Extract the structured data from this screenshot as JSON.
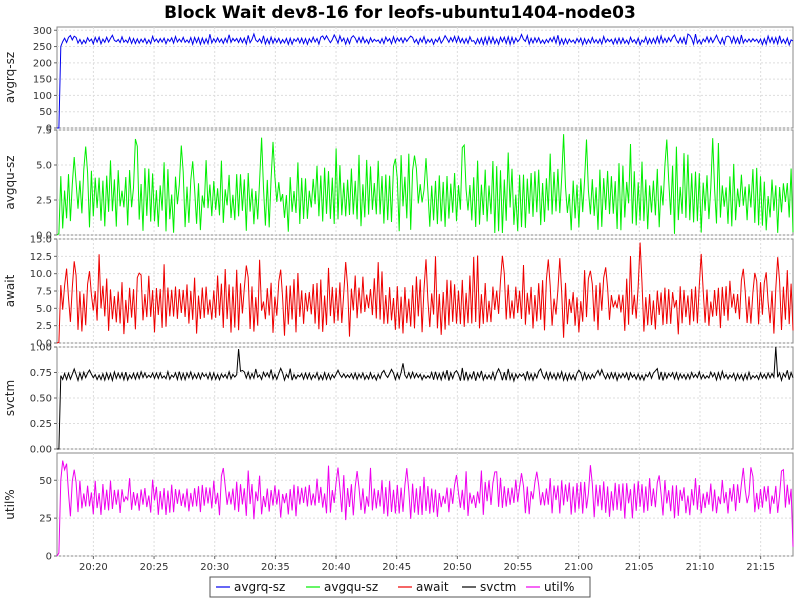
{
  "chart_data": {
    "type": "line",
    "title": "Block Wait dev8-16 for leofs-ubuntu1404-node03",
    "x_axis": {
      "ticks": [
        "20:20",
        "20:25",
        "20:30",
        "20:35",
        "20:40",
        "20:45",
        "20:50",
        "20:55",
        "21:00",
        "21:05",
        "21:10",
        "21:15"
      ],
      "range": [
        "20:17:00",
        "21:17:40"
      ]
    },
    "grid": true,
    "legend_position": "bottom",
    "legend": [
      "avgrq-sz",
      "avgqu-sz",
      "await",
      "svctm",
      "util%"
    ],
    "panels": [
      {
        "name": "avgrq-sz",
        "ylabel": "avgrq-sz",
        "color": "#0000ee",
        "ylim": [
          0,
          310
        ],
        "yticks": [
          "0",
          "50",
          "100",
          "150",
          "200",
          "250",
          "300"
        ],
        "baseline": 268,
        "amplitude": 9,
        "spikes": [
          [
            1,
            0
          ],
          [
            2,
            250
          ]
        ],
        "values_summary": "rises from 0 to ~255 within the first minute, then fluctuates between ~258 and ~298"
      },
      {
        "name": "avgqu-sz",
        "ylabel": "avgqu-sz",
        "color": "#00ee00",
        "ylim": [
          0,
          7.5
        ],
        "yticks": [
          "0.0",
          "2.5",
          "5.0",
          "7.5"
        ],
        "baseline": 2.6,
        "amplitude": 1.9,
        "spikes": [
          [
            1,
            0.1
          ],
          [
            2,
            4.2
          ],
          [
            265,
            7.2
          ],
          [
            300,
            6.5
          ],
          [
            385,
            0.2
          ]
        ],
        "values_summary": "oscillates between ~0.5 and ~7.3, mostly 1 to 5"
      },
      {
        "name": "await",
        "ylabel": "await",
        "color": "#ee0000",
        "ylim": [
          0,
          15
        ],
        "yticks": [
          "0.0",
          "2.5",
          "5.0",
          "7.5",
          "10.0",
          "12.5",
          "15.0"
        ],
        "baseline": 5.5,
        "amplitude": 3.2,
        "spikes": [
          [
            1,
            0.1
          ],
          [
            3,
            4.8
          ],
          [
            22,
            12.8
          ],
          [
            198,
            12.5
          ],
          [
            218,
            12.4
          ],
          [
            305,
            14.5
          ],
          [
            382,
            10.5
          ],
          [
            385,
            1.8
          ]
        ],
        "values_summary": "oscillates between ~2 and ~14.5, mostly 2.5 to 9"
      },
      {
        "name": "svctm",
        "ylabel": "svctm",
        "color": "#000000",
        "ylim": [
          0,
          1
        ],
        "yticks": [
          "0.00",
          "0.25",
          "0.50",
          "0.75",
          "1.00"
        ],
        "baseline": 0.715,
        "amplitude": 0.035,
        "spikes": [
          [
            1,
            0.0
          ],
          [
            2,
            0.72
          ],
          [
            95,
            0.98
          ],
          [
            181,
            0.84
          ],
          [
            376,
            1.0
          ]
        ],
        "values_summary": "around 0.65 to 0.80 with spikes near 1.0 at ~20:32:40 and ~21:16:30"
      },
      {
        "name": "util%",
        "ylabel": "util%",
        "color": "#ee00ee",
        "ylim": [
          0,
          68
        ],
        "yticks": [
          "0",
          "25",
          "50"
        ],
        "baseline": 38,
        "amplitude": 10,
        "spikes": [
          [
            1,
            2
          ],
          [
            2,
            50
          ],
          [
            3,
            63
          ],
          [
            4,
            57
          ],
          [
            5,
            61
          ],
          [
            9,
            57
          ],
          [
            380,
            57
          ],
          [
            385,
            6
          ]
        ],
        "values_summary": "starts near 0, jumps to ~60, then fluctuates between ~25 and ~55"
      }
    ]
  }
}
